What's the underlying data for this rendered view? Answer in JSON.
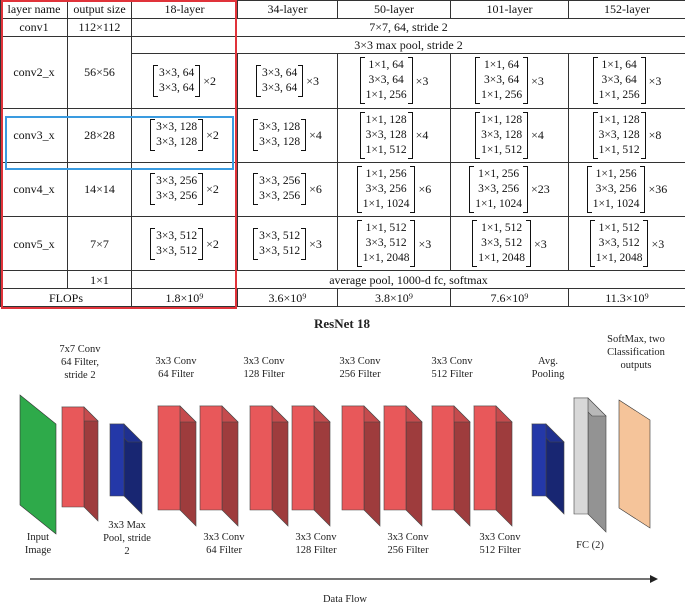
{
  "table": {
    "headers": [
      "layer name",
      "output size",
      "18-layer",
      "34-layer",
      "50-layer",
      "101-layer",
      "152-layer"
    ],
    "conv1": {
      "name": "conv1",
      "size": "112×112",
      "spec": "7×7, 64, stride 2"
    },
    "maxpool": "3×3 max pool, stride 2",
    "stages": [
      {
        "name": "conv2_x",
        "size": "56×56",
        "cells": [
          {
            "lines": [
              "3×3, 64",
              "3×3, 64"
            ],
            "mult": "×2"
          },
          {
            "lines": [
              "3×3, 64",
              "3×3, 64"
            ],
            "mult": "×3"
          },
          {
            "lines": [
              "1×1, 64",
              "3×3, 64",
              "1×1, 256"
            ],
            "mult": "×3"
          },
          {
            "lines": [
              "1×1, 64",
              "3×3, 64",
              "1×1, 256"
            ],
            "mult": "×3"
          },
          {
            "lines": [
              "1×1, 64",
              "3×3, 64",
              "1×1, 256"
            ],
            "mult": "×3"
          }
        ]
      },
      {
        "name": "conv3_x",
        "size": "28×28",
        "cells": [
          {
            "lines": [
              "3×3, 128",
              "3×3, 128"
            ],
            "mult": "×2"
          },
          {
            "lines": [
              "3×3, 128",
              "3×3, 128"
            ],
            "mult": "×4"
          },
          {
            "lines": [
              "1×1, 128",
              "3×3, 128",
              "1×1, 512"
            ],
            "mult": "×4"
          },
          {
            "lines": [
              "1×1, 128",
              "3×3, 128",
              "1×1, 512"
            ],
            "mult": "×4"
          },
          {
            "lines": [
              "1×1, 128",
              "3×3, 128",
              "1×1, 512"
            ],
            "mult": "×8"
          }
        ]
      },
      {
        "name": "conv4_x",
        "size": "14×14",
        "cells": [
          {
            "lines": [
              "3×3, 256",
              "3×3, 256"
            ],
            "mult": "×2"
          },
          {
            "lines": [
              "3×3, 256",
              "3×3, 256"
            ],
            "mult": "×6"
          },
          {
            "lines": [
              "1×1, 256",
              "3×3, 256",
              "1×1, 1024"
            ],
            "mult": "×6"
          },
          {
            "lines": [
              "1×1, 256",
              "3×3, 256",
              "1×1, 1024"
            ],
            "mult": "×23"
          },
          {
            "lines": [
              "1×1, 256",
              "3×3, 256",
              "1×1, 1024"
            ],
            "mult": "×36"
          }
        ]
      },
      {
        "name": "conv5_x",
        "size": "7×7",
        "cells": [
          {
            "lines": [
              "3×3, 512",
              "3×3, 512"
            ],
            "mult": "×2"
          },
          {
            "lines": [
              "3×3, 512",
              "3×3, 512"
            ],
            "mult": "×3"
          },
          {
            "lines": [
              "1×1, 512",
              "3×3, 512",
              "1×1, 2048"
            ],
            "mult": "×3"
          },
          {
            "lines": [
              "1×1, 512",
              "3×3, 512",
              "1×1, 2048"
            ],
            "mult": "×3"
          },
          {
            "lines": [
              "1×1, 512",
              "3×3, 512",
              "1×1, 2048"
            ],
            "mult": "×3"
          }
        ]
      }
    ],
    "final": {
      "size": "1×1",
      "spec": "average pool, 1000-d fc, softmax"
    },
    "flops": {
      "label": "FLOPs",
      "values": [
        "1.8×10⁹",
        "3.6×10⁹",
        "3.8×10⁹",
        "7.6×10⁹",
        "11.3×10⁹"
      ]
    }
  },
  "highlight_colors": {
    "red_box": "#e0333a",
    "blue_box": "#3a9be0"
  },
  "diagram": {
    "title": "ResNet 18",
    "top_labels": [
      [
        "7x7 Conv",
        "64 Filter,",
        "stride 2"
      ],
      [
        "3x3 Conv",
        "64 Filter"
      ],
      [
        "3x3 Conv",
        "128 Filter"
      ],
      [
        "3x3 Conv",
        "256 Filter"
      ],
      [
        "3x3 Conv",
        "512 Filter"
      ],
      [
        "Avg.",
        "Pooling"
      ],
      [
        "SoftMax, two",
        "Classification",
        "outputs"
      ]
    ],
    "bottom_labels": [
      [
        "Input",
        "Image"
      ],
      [
        "3x3 Max",
        "Pool, stride",
        "2"
      ],
      [
        "3x3 Conv",
        "64 Filter"
      ],
      [
        "3x3 Conv",
        "128 Filter"
      ],
      [
        "3x3 Conv",
        "256 Filter"
      ],
      [
        "3x3 Conv",
        "512 Filter"
      ],
      [
        "FC (2)"
      ]
    ],
    "flow_label": "Data Flow",
    "colors": {
      "input": "#2eaa4a",
      "conv": "#e8585a",
      "pool": "#2438a8",
      "fc": "#d8d8d8",
      "softmax": "#f5c49a"
    }
  }
}
